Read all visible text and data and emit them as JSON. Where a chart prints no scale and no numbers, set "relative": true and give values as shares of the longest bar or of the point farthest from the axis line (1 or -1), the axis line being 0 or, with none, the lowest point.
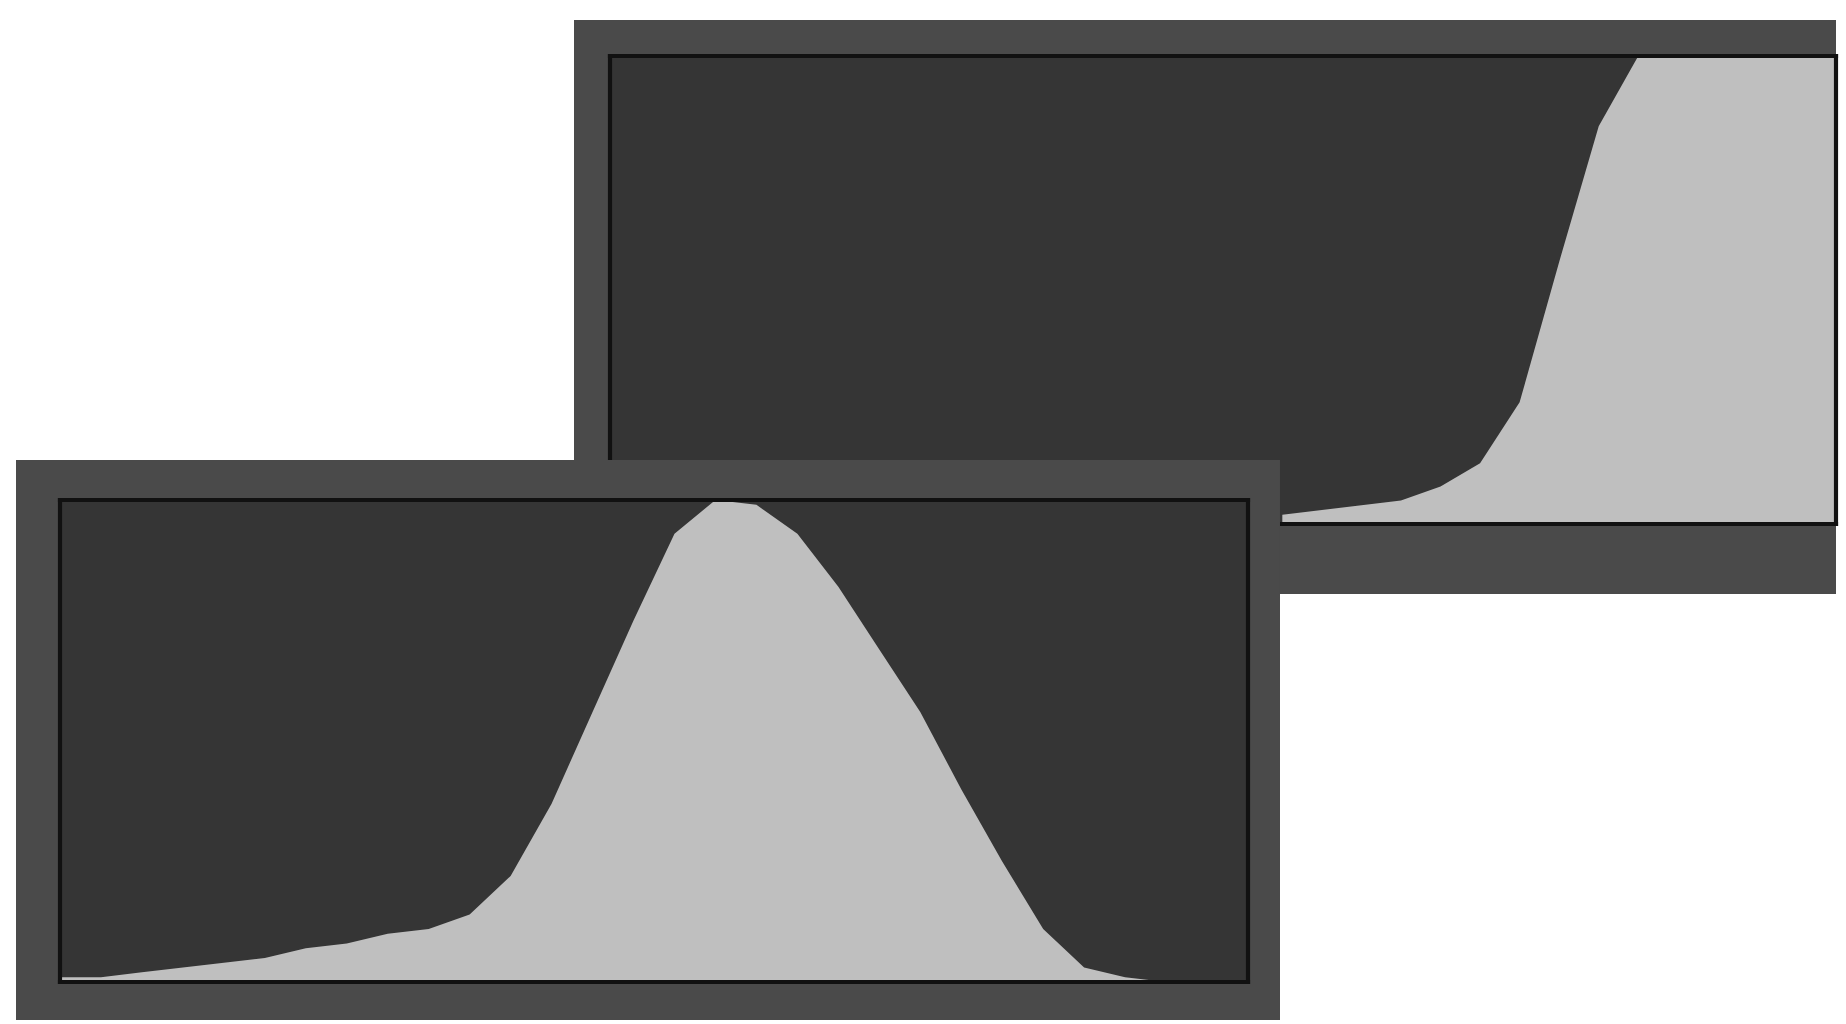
{
  "chart_data": [
    {
      "type": "area",
      "relative": true,
      "categories": [
        null,
        null,
        null,
        null,
        null,
        null,
        null,
        null,
        null,
        null,
        null,
        null,
        null,
        null,
        null,
        null,
        null,
        null,
        null,
        null,
        null,
        null,
        null,
        null,
        null,
        null,
        null,
        null,
        null,
        null,
        null,
        null
      ],
      "series": [
        {
          "color": "#bfbfbf",
          "values": [
            null,
            null,
            null,
            null,
            null,
            null,
            null,
            null,
            null,
            null,
            null,
            null,
            null,
            null,
            null,
            null,
            null,
            0.02,
            0.03,
            0.04,
            0.05,
            0.08,
            0.13,
            0.26,
            0.56,
            0.85,
            1,
            1,
            1,
            1,
            1,
            1
          ]
        }
      ]
    },
    {
      "type": "area",
      "relative": true,
      "categories": [
        null,
        null,
        null,
        null,
        null,
        null,
        null,
        null,
        null,
        null,
        null,
        null,
        null,
        null,
        null,
        null,
        null,
        null,
        null,
        null,
        null,
        null,
        null,
        null,
        null,
        null,
        null,
        null,
        null,
        null
      ],
      "series": [
        {
          "color": "#bfbfbf",
          "values": [
            0.01,
            0.01,
            0.02,
            0.03,
            0.04,
            0.05,
            0.07,
            0.08,
            0.1,
            0.11,
            0.14,
            0.22,
            0.37,
            0.56,
            0.75,
            0.93,
            1,
            0.99,
            0.93,
            0.82,
            0.69,
            0.56,
            0.4,
            0.25,
            0.11,
            0.03,
            0.01,
            0,
            0,
            0
          ]
        }
      ]
    }
  ]
}
